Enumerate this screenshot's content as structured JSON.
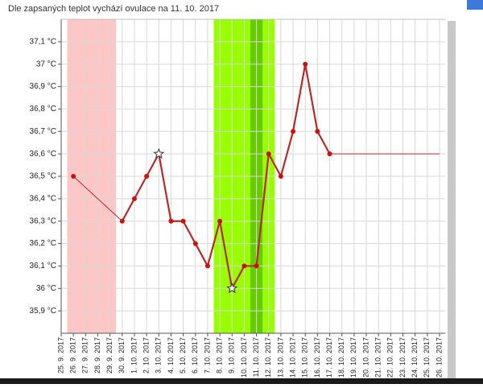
{
  "chart_data": {
    "type": "line",
    "title": "Dle zapsaných teplot vychází ovulace na 11. 10. 2017",
    "categories": [
      "25. 9. 2017",
      "26. 9. 2017",
      "27. 9. 2017",
      "28. 9. 2017",
      "29. 9. 2017",
      "30. 9. 2017",
      "1. 10. 2017",
      "2. 10. 2017",
      "3. 10. 2017",
      "4. 10. 2017",
      "5. 10. 2017",
      "6. 10. 2017",
      "7. 10. 2017",
      "8. 10. 2017",
      "9. 10. 2017",
      "10. 10. 2017",
      "11. 10. 2017",
      "12. 10. 2017",
      "13. 10. 2017",
      "14. 10. 2017",
      "15. 10. 2017",
      "16. 10. 2017",
      "17. 10. 2017",
      "18. 10. 2017",
      "19. 10. 2017",
      "20. 10. 2017",
      "21. 10. 2017",
      "22. 10. 2017",
      "23. 10. 2017",
      "24. 10. 2017",
      "25. 10. 2017",
      "26. 10. 2017"
    ],
    "series": [
      {
        "color": "#b52a2a",
        "point_color": "#cc1010",
        "values": [
          null,
          36.5,
          null,
          null,
          null,
          36.3,
          36.4,
          36.5,
          36.6,
          36.3,
          36.3,
          36.2,
          36.1,
          36.3,
          36.0,
          36.1,
          36.1,
          36.6,
          36.5,
          36.7,
          37.0,
          36.7,
          36.6,
          null,
          null,
          null,
          null,
          null,
          null,
          null,
          null,
          null
        ],
        "star_points": [
          8,
          14
        ]
      }
    ],
    "bands": [
      {
        "from": 1,
        "to": 4,
        "color": "#ffc6c6"
      },
      {
        "from": 13,
        "to": 17,
        "color": "#99ff00"
      },
      {
        "from": 16,
        "to": 16,
        "color": "#66cc00"
      }
    ],
    "ylim": [
      35.8,
      37.2
    ],
    "yticks": [
      {
        "value": 35.9,
        "label": "35,9 °C"
      },
      {
        "value": 36,
        "label": "36 °C"
      },
      {
        "value": 36.1,
        "label": "36,1 °C"
      },
      {
        "value": 36.2,
        "label": "36,2 °C"
      },
      {
        "value": 36.3,
        "label": "36,3 °C"
      },
      {
        "value": 36.4,
        "label": "36,4 °C"
      },
      {
        "value": 36.5,
        "label": "36,5 °C"
      },
      {
        "value": 36.6,
        "label": "36,6 °C"
      },
      {
        "value": 36.7,
        "label": "36,7 °C"
      },
      {
        "value": 36.8,
        "label": "36,8 °C"
      },
      {
        "value": 36.9,
        "label": "36,9 °C"
      },
      {
        "value": 37,
        "label": "37 °C"
      },
      {
        "value": 37.1,
        "label": "37,1 °C"
      }
    ],
    "grid": true
  }
}
